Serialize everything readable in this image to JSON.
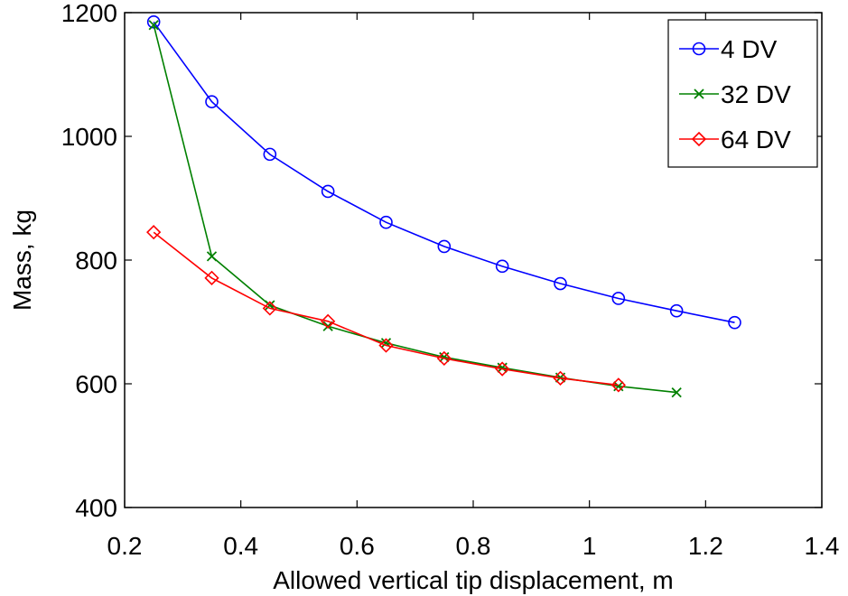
{
  "chart_data": {
    "type": "line",
    "title": "",
    "xlabel": "Allowed vertical tip displacement, m",
    "ylabel": "Mass, kg",
    "xlim": [
      0.2,
      1.4
    ],
    "ylim": [
      400,
      1200
    ],
    "x_ticks": [
      0.2,
      0.4,
      0.6,
      0.8,
      1.0,
      1.2,
      1.4
    ],
    "x_tick_labels": [
      "0.2",
      "0.4",
      "0.6",
      "0.8",
      "1",
      "1.2",
      "1.4"
    ],
    "y_ticks": [
      400,
      600,
      800,
      1000,
      1200
    ],
    "y_tick_labels": [
      "400",
      "600",
      "800",
      "1000",
      "1200"
    ],
    "grid": false,
    "legend_position": "top-right",
    "series": [
      {
        "name": "4 DV",
        "color": "#0000ff",
        "marker": "circle",
        "x": [
          0.25,
          0.35,
          0.45,
          0.55,
          0.65,
          0.75,
          0.85,
          0.95,
          1.05,
          1.15,
          1.25
        ],
        "y": [
          1185,
          1056,
          971,
          911,
          861,
          822,
          790,
          762,
          738,
          718,
          699
        ]
      },
      {
        "name": "32 DV",
        "color": "#008000",
        "marker": "x",
        "x": [
          0.25,
          0.35,
          0.45,
          0.55,
          0.65,
          0.75,
          0.85,
          0.95,
          1.05,
          1.15
        ],
        "y": [
          1180,
          806,
          727,
          693,
          666,
          643,
          626,
          610,
          596,
          586
        ]
      },
      {
        "name": "64 DV",
        "color": "#ff0000",
        "marker": "diamond",
        "x": [
          0.25,
          0.35,
          0.45,
          0.55,
          0.65,
          0.75,
          0.85,
          0.95,
          1.05
        ],
        "y": [
          845,
          771,
          722,
          701,
          662,
          641,
          624,
          609,
          598
        ]
      }
    ]
  }
}
